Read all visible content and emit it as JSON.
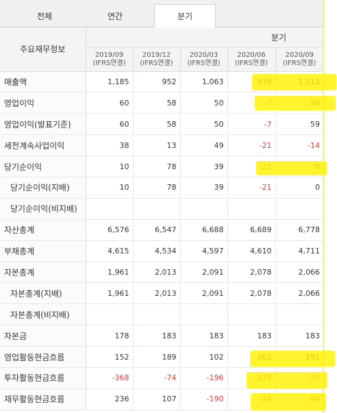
{
  "tabs": [
    {
      "label": "전체"
    },
    {
      "label": "연간"
    },
    {
      "label": "분기"
    }
  ],
  "table": {
    "label_header": "주요재무정보",
    "group_header": "분기",
    "columns": [
      {
        "period": "2019/09",
        "basis": "(IFRS연결)"
      },
      {
        "period": "2019/12",
        "basis": "(IFRS연결)"
      },
      {
        "period": "2020/03",
        "basis": "(IFRS연결)"
      },
      {
        "period": "2020/06",
        "basis": "(IFRS연결)"
      },
      {
        "period": "2020/09",
        "basis": "(IFRS연결)"
      }
    ],
    "rows": [
      {
        "label": "매출액",
        "values": [
          "1,185",
          "952",
          "1,063",
          "839",
          "1,312"
        ]
      },
      {
        "label": "영업이익",
        "values": [
          "60",
          "58",
          "50",
          "-7",
          "59"
        ]
      },
      {
        "label": "영업이익(발표기준)",
        "values": [
          "60",
          "58",
          "50",
          "-7",
          "59"
        ]
      },
      {
        "label": "세전계속사업이익",
        "values": [
          "38",
          "13",
          "49",
          "-21",
          "-14"
        ]
      },
      {
        "label": "당기순이익",
        "values": [
          "10",
          "78",
          "39",
          "-21",
          "0"
        ]
      },
      {
        "label": "당기순이익(지배)",
        "values": [
          "10",
          "78",
          "39",
          "-21",
          "0"
        ]
      },
      {
        "label": "당기순이익(비지배)",
        "values": [
          "",
          "",
          "",
          "",
          ""
        ]
      },
      {
        "label": "자산총계",
        "values": [
          "6,576",
          "6,547",
          "6,688",
          "6,689",
          "6,778"
        ]
      },
      {
        "label": "부채총계",
        "values": [
          "4,615",
          "4,534",
          "4,597",
          "4,610",
          "4,711"
        ]
      },
      {
        "label": "자본총계",
        "values": [
          "1,961",
          "2,013",
          "2,091",
          "2,078",
          "2,066"
        ]
      },
      {
        "label": "자본총계(지배)",
        "values": [
          "1,961",
          "2,013",
          "2,091",
          "2,078",
          "2,066"
        ]
      },
      {
        "label": "자본총계(비지배)",
        "values": [
          "",
          "",
          "",
          "",
          ""
        ]
      },
      {
        "label": "자본금",
        "values": [
          "178",
          "183",
          "183",
          "183",
          "183"
        ]
      },
      {
        "label": "영업활동현금흐름",
        "values": [
          "152",
          "189",
          "102",
          "262",
          "191"
        ]
      },
      {
        "label": "투자활동현금흐름",
        "values": [
          "-368",
          "-74",
          "-196",
          "-325",
          "-33"
        ]
      },
      {
        "label": "재무활동현금흐름",
        "values": [
          "236",
          "107",
          "-190",
          "-24",
          "-64"
        ]
      }
    ]
  },
  "colors": {
    "highlight": "#fff200",
    "negative": "#e23a3a",
    "header_bg": "#f4f4f4"
  }
}
